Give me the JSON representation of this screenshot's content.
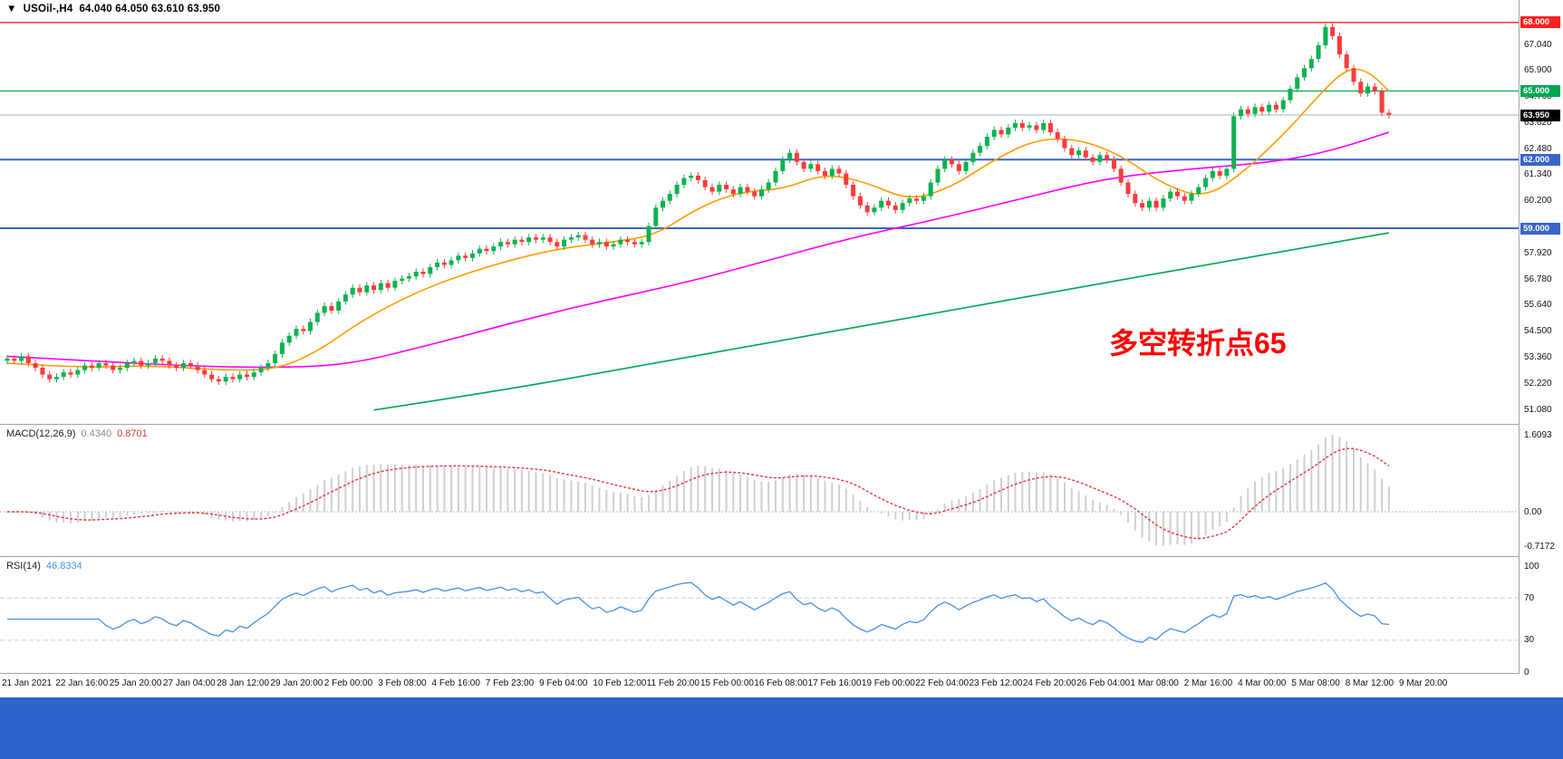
{
  "window": {
    "marker_icon": "▼",
    "title_symbol": "USOil-,H4",
    "title_ohlc": "64.040 64.050 63.610 63.950"
  },
  "annotation": {
    "text": "多空转折点65"
  },
  "colors": {
    "up": "#0db24f",
    "down": "#fb3b3b",
    "ma_fast": "#ff9c00",
    "ma_mid": "#ff00ff",
    "ma_slow": "#00a651",
    "line_red": "#ff2020",
    "line_green": "#00a651",
    "line_blue": "#3a64c8",
    "price_line": "#9db4c8",
    "price_badge": "#000000",
    "macd_hist": "#cfcfcf",
    "macd_signal": "#e03a3a",
    "rsi_line": "#4a90e2",
    "rsi_level": "#c3cbe3",
    "annotation": "#ff0000",
    "footer": "#2d62c9"
  },
  "price_axis": {
    "ticks": [
      {
        "price": 67.04,
        "label": "67.040"
      },
      {
        "price": 65.9,
        "label": "65.900"
      },
      {
        "price": 64.76,
        "label": "64.760"
      },
      {
        "price": 63.62,
        "label": "63.620"
      },
      {
        "price": 62.48,
        "label": "62.480"
      },
      {
        "price": 61.34,
        "label": "61.340"
      },
      {
        "price": 60.2,
        "label": "60.200"
      },
      {
        "price": 57.92,
        "label": "57.920"
      },
      {
        "price": 56.78,
        "label": "56.780"
      },
      {
        "price": 55.64,
        "label": "55.640"
      },
      {
        "price": 54.5,
        "label": "54.500"
      },
      {
        "price": 53.36,
        "label": "53.360"
      },
      {
        "price": 52.22,
        "label": "52.220"
      },
      {
        "price": 51.08,
        "label": "51.080"
      }
    ]
  },
  "hlines": [
    {
      "price": 68.0,
      "label": "68.000",
      "color": "#ff2020",
      "width": 1.3
    },
    {
      "price": 65.0,
      "label": "65.000",
      "color": "#00a651",
      "width": 1.3
    },
    {
      "price": 62.0,
      "label": "62.000",
      "color": "#3a64c8",
      "width": 2
    },
    {
      "price": 59.0,
      "label": "59.000",
      "color": "#3a64c8",
      "width": 2
    }
  ],
  "price_line": {
    "price": 63.95,
    "label": "63.950"
  },
  "macd": {
    "header_label": "MACD(12,26,9)",
    "value_main": "0.4340",
    "value_signal": "0.8701",
    "fast": 12,
    "slow": 26,
    "signal": 9,
    "scale_labels": [
      {
        "v": 1.6093,
        "label": "1.6093"
      },
      {
        "v": 0,
        "label": "0.00"
      },
      {
        "v": -0.7172,
        "label": "-0.7172"
      }
    ]
  },
  "rsi": {
    "header_label": "RSI(14)",
    "value": "46.8334",
    "period": 14,
    "levels": [
      70,
      30
    ],
    "scale_labels": [
      {
        "v": 100,
        "label": "100"
      },
      {
        "v": 70,
        "label": "70"
      },
      {
        "v": 30,
        "label": "30"
      },
      {
        "v": 0,
        "label": "0"
      }
    ]
  },
  "time_axis": [
    "21 Jan 2021",
    "22 Jan 16:00",
    "25 Jan 20:00",
    "27 Jan 04:00",
    "28 Jan 12:00",
    "29 Jan 20:00",
    "2 Feb 00:00",
    "3 Feb 08:00",
    "4 Feb 16:00",
    "7 Feb 23:00",
    "9 Feb 04:00",
    "10 Feb 12:00",
    "11 Feb 20:00",
    "15 Feb 00:00",
    "16 Feb 08:00",
    "17 Feb 16:00",
    "19 Feb 00:00",
    "22 Feb 04:00",
    "23 Feb 12:00",
    "24 Feb 20:00",
    "26 Feb 04:00",
    "1 Mar 08:00",
    "2 Mar 16:00",
    "4 Mar 00:00",
    "5 Mar 08:00",
    "8 Mar 12:00",
    "9 Mar 20:00"
  ],
  "chart_data": {
    "type": "candlestick",
    "symbol": "USOil",
    "timeframe": "H4",
    "title": "USOil-,H4 64.040 64.050 63.610 63.950",
    "ylim": [
      51.08,
      68.2
    ],
    "first_open": 53.2,
    "wick": 0.15,
    "closes": [
      53.3,
      53.2,
      53.4,
      53.1,
      52.9,
      52.6,
      52.4,
      52.5,
      52.7,
      52.6,
      52.8,
      53.0,
      52.9,
      53.1,
      53.0,
      52.8,
      52.9,
      53.1,
      53.2,
      53.0,
      53.1,
      53.3,
      53.2,
      53.0,
      52.9,
      53.1,
      53.0,
      52.8,
      52.6,
      52.4,
      52.3,
      52.5,
      52.4,
      52.6,
      52.5,
      52.7,
      52.9,
      53.1,
      53.5,
      54.0,
      54.3,
      54.6,
      54.5,
      54.9,
      55.3,
      55.6,
      55.4,
      55.8,
      56.1,
      56.4,
      56.2,
      56.5,
      56.3,
      56.6,
      56.4,
      56.7,
      56.8,
      56.9,
      57.1,
      57.0,
      57.3,
      57.5,
      57.4,
      57.6,
      57.8,
      57.7,
      57.9,
      58.1,
      58.0,
      58.2,
      58.4,
      58.3,
      58.5,
      58.4,
      58.6,
      58.5,
      58.6,
      58.4,
      58.2,
      58.5,
      58.6,
      58.7,
      58.5,
      58.3,
      58.4,
      58.2,
      58.3,
      58.5,
      58.4,
      58.3,
      58.4,
      59.1,
      59.9,
      60.2,
      60.5,
      60.9,
      61.2,
      61.3,
      61.1,
      60.8,
      60.6,
      60.9,
      60.7,
      60.5,
      60.8,
      60.6,
      60.4,
      60.7,
      61.0,
      61.5,
      62.0,
      62.3,
      61.9,
      61.6,
      61.8,
      61.5,
      61.3,
      61.6,
      61.4,
      60.9,
      60.4,
      60.0,
      59.7,
      59.9,
      60.2,
      60.0,
      59.8,
      60.1,
      60.3,
      60.2,
      60.4,
      61.0,
      61.6,
      62.0,
      61.8,
      61.5,
      61.9,
      62.3,
      62.6,
      63.0,
      63.3,
      63.1,
      63.4,
      63.6,
      63.4,
      63.5,
      63.3,
      63.6,
      63.2,
      62.9,
      62.5,
      62.2,
      62.4,
      62.1,
      61.9,
      62.2,
      62.0,
      61.6,
      61.0,
      60.5,
      60.1,
      59.9,
      60.2,
      59.9,
      60.3,
      60.6,
      60.4,
      60.2,
      60.5,
      60.8,
      61.2,
      61.5,
      61.3,
      61.6,
      63.9,
      64.2,
      64.0,
      64.3,
      64.1,
      64.4,
      64.2,
      64.6,
      65.1,
      65.6,
      66.0,
      66.4,
      67.0,
      67.8,
      67.4,
      66.6,
      66.0,
      65.4,
      64.9,
      65.2,
      65.0,
      64.05,
      63.95
    ],
    "overlays": {
      "ma_fast_points": [
        [
          0,
          53.1
        ],
        [
          10,
          52.9
        ],
        [
          20,
          53.0
        ],
        [
          30,
          52.8
        ],
        [
          38,
          52.8
        ],
        [
          44,
          53.6
        ],
        [
          50,
          54.9
        ],
        [
          56,
          55.9
        ],
        [
          62,
          56.7
        ],
        [
          70,
          57.5
        ],
        [
          78,
          58.1
        ],
        [
          86,
          58.4
        ],
        [
          92,
          58.7
        ],
        [
          98,
          59.9
        ],
        [
          104,
          60.6
        ],
        [
          110,
          60.7
        ],
        [
          116,
          61.4
        ],
        [
          122,
          61.0
        ],
        [
          128,
          60.2
        ],
        [
          134,
          60.8
        ],
        [
          140,
          62.0
        ],
        [
          146,
          62.9
        ],
        [
          152,
          62.9
        ],
        [
          158,
          62.2
        ],
        [
          164,
          60.9
        ],
        [
          170,
          60.3
        ],
        [
          176,
          61.6
        ],
        [
          182,
          63.4
        ],
        [
          186,
          64.8
        ],
        [
          190,
          66.0
        ],
        [
          193,
          65.9
        ],
        [
          196,
          65.0
        ]
      ],
      "ma_mid_points": [
        [
          0,
          53.4
        ],
        [
          12,
          53.2
        ],
        [
          24,
          53.0
        ],
        [
          36,
          52.9
        ],
        [
          48,
          53.0
        ],
        [
          60,
          53.9
        ],
        [
          72,
          54.9
        ],
        [
          84,
          55.8
        ],
        [
          96,
          56.6
        ],
        [
          108,
          57.6
        ],
        [
          120,
          58.6
        ],
        [
          132,
          59.4
        ],
        [
          144,
          60.3
        ],
        [
          156,
          61.2
        ],
        [
          168,
          61.6
        ],
        [
          180,
          61.9
        ],
        [
          188,
          62.4
        ],
        [
          196,
          63.2
        ]
      ],
      "ma_slow_points": [
        [
          52,
          51.05
        ],
        [
          70,
          51.9
        ],
        [
          90,
          53.0
        ],
        [
          110,
          54.1
        ],
        [
          130,
          55.2
        ],
        [
          150,
          56.3
        ],
        [
          170,
          57.4
        ],
        [
          185,
          58.2
        ],
        [
          196,
          58.8
        ]
      ]
    },
    "indicators": {
      "macd": {
        "params": [
          12,
          26,
          9
        ],
        "last_main": 0.434,
        "last_signal": 0.8701,
        "scale": [
          -0.7172,
          1.6093
        ]
      },
      "rsi": {
        "period": 14,
        "last": 46.8334,
        "levels": [
          70,
          30
        ]
      }
    },
    "hlines": [
      68.0,
      65.0,
      62.0,
      59.0
    ],
    "current_price": 63.95
  }
}
